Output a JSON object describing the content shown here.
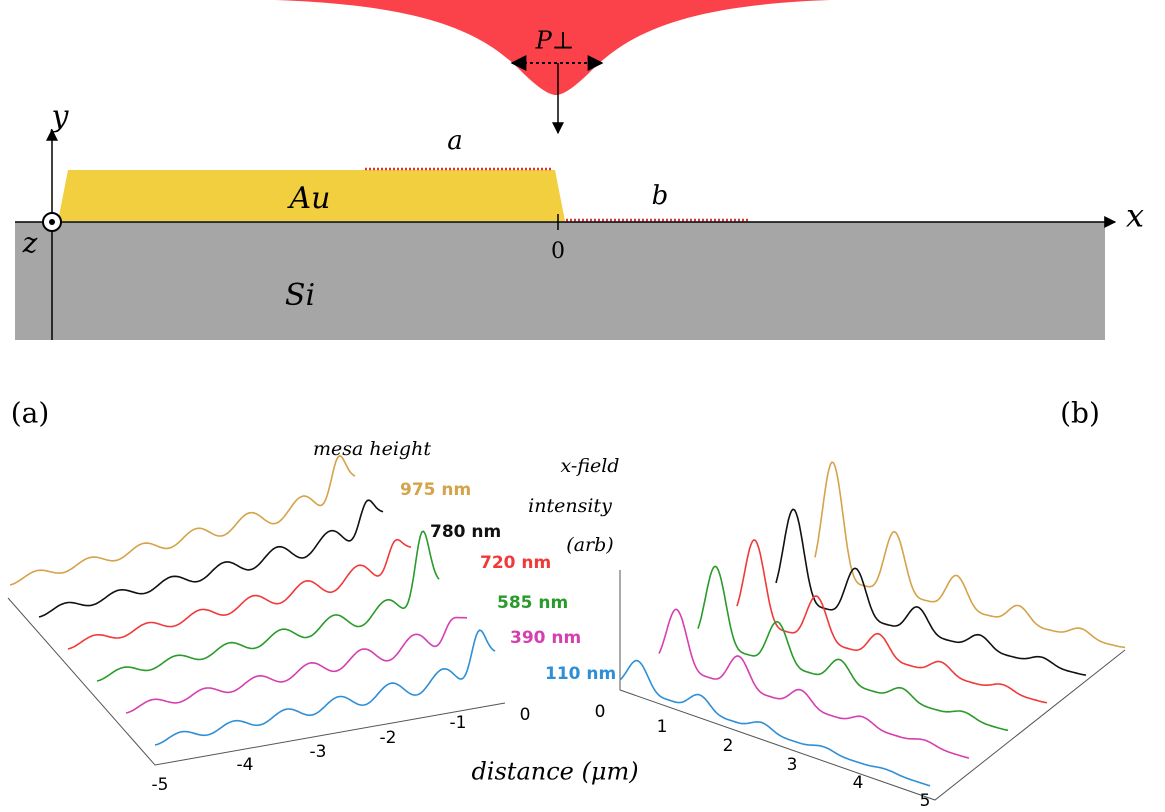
{
  "diagram": {
    "beam_label": "P⊥",
    "segment_a": "a",
    "segment_b": "b",
    "mesa": "Au",
    "substrate": "Si",
    "axis_x": "x",
    "axis_y": "y",
    "axis_z": "z",
    "origin": "0"
  },
  "panel_a": {
    "tag": "(a)",
    "legend_title": "mesa height",
    "series": [
      "975 nm",
      "780 nm",
      "720 nm",
      "585 nm",
      "390 nm",
      "110 nm"
    ],
    "ticks": [
      "-5",
      "-4",
      "-3",
      "-2",
      "-1",
      "0"
    ]
  },
  "panel_b": {
    "tag": "(b)",
    "ylabel": [
      "x-field",
      "intensity",
      "(arb)"
    ],
    "ticks": [
      "0",
      "1",
      "2",
      "3",
      "4",
      "5"
    ]
  },
  "xlabel": "distance (μm)"
}
